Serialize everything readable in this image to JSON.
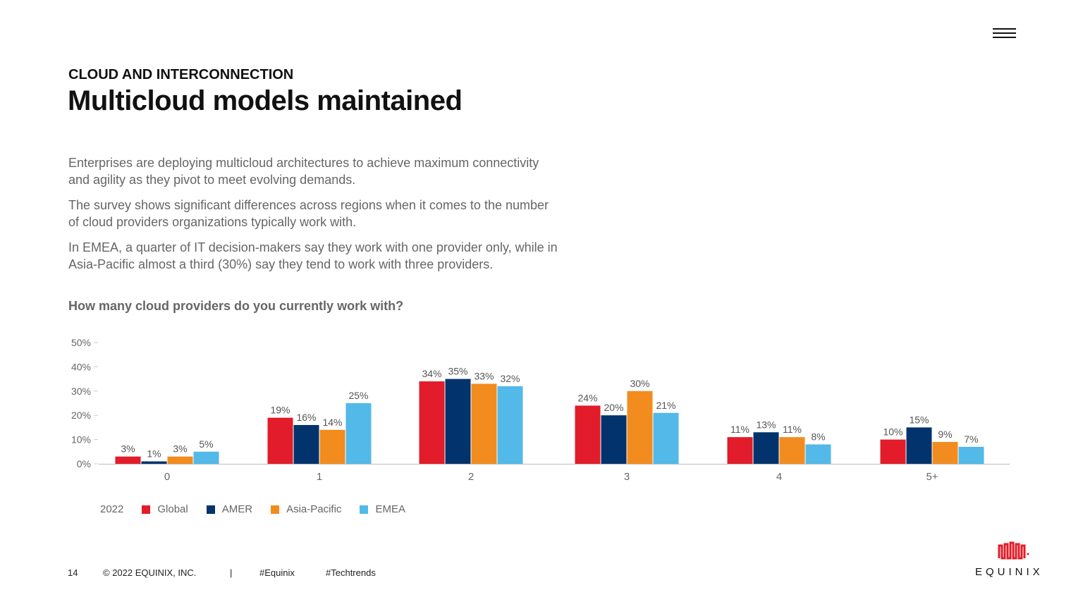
{
  "header": {
    "section": "CLOUD AND INTERCONNECTION",
    "title": "Multicloud models maintained"
  },
  "intro": [
    "Enterprises are deploying multicloud architectures to achieve maximum connectivity and agility as they pivot to meet evolving demands.",
    "The survey shows significant differences across regions when it comes to the number of cloud providers organizations typically work with.",
    "In EMEA, a quarter of IT decision-makers say they work with one provider only, while in Asia-Pacific almost a third (30%) say they tend to work with three providers."
  ],
  "question": "How many cloud providers do you currently work with?",
  "legend": {
    "year": "2022"
  },
  "chart_data": {
    "type": "bar",
    "title": "",
    "xlabel": "",
    "ylabel": "",
    "categories": [
      "0",
      "1",
      "2",
      "3",
      "4",
      "5+"
    ],
    "ylim": [
      0,
      50
    ],
    "yticks": [
      "0%",
      "10%",
      "20%",
      "30%",
      "40%",
      "50%"
    ],
    "series": [
      {
        "name": "Global",
        "color": "#e21c2a",
        "values": [
          3,
          19,
          34,
          24,
          11,
          10
        ],
        "labels": [
          "3%",
          "19%",
          "34%",
          "24%",
          "11%",
          "10%"
        ]
      },
      {
        "name": "AMER",
        "color": "#03336c",
        "values": [
          1,
          16,
          35,
          20,
          13,
          15
        ],
        "labels": [
          "1%",
          "16%",
          "35%",
          "20%",
          "13%",
          "15%"
        ]
      },
      {
        "name": "Asia-Pacific",
        "color": "#f28c1e",
        "values": [
          3,
          14,
          33,
          30,
          11,
          9
        ],
        "labels": [
          "3%",
          "14%",
          "33%",
          "30%",
          "11%",
          "9%"
        ]
      },
      {
        "name": "EMEA",
        "color": "#52b9e9",
        "values": [
          5,
          25,
          32,
          21,
          8,
          7
        ],
        "labels": [
          "5%",
          "25%",
          "32%",
          "21%",
          "8%",
          "7%"
        ]
      }
    ],
    "grid": false,
    "legend_position": "bottom-left"
  },
  "footer": {
    "page": "14",
    "copyright": "© 2022 EQUINIX, INC.",
    "separator": "|",
    "tag1": "#Equinix",
    "tag2": "#Techtrends"
  },
  "logo": {
    "text": "EQUINIX",
    "icon": "equinix-logo-icon"
  }
}
